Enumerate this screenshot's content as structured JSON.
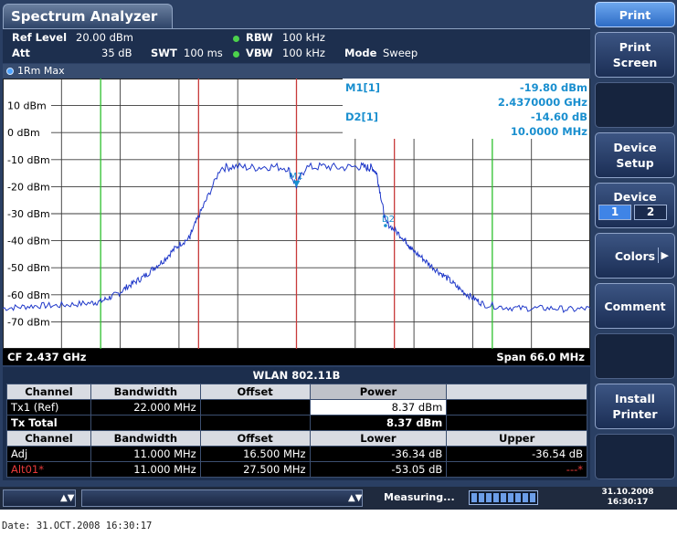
{
  "title": "Spectrum Analyzer",
  "header": {
    "ref_level_label": "Ref Level",
    "ref_level_value": "20.00 dBm",
    "att_label": "Att",
    "att_value": "35 dB",
    "swt_label": "SWT",
    "swt_value": "100 ms",
    "rbw_label": "RBW",
    "rbw_value": "100 kHz",
    "vbw_label": "VBW",
    "vbw_value": "100 kHz",
    "mode_label": "Mode",
    "mode_value": "Sweep",
    "indicator_color": "#4cd24c"
  },
  "trace": {
    "label": "1Rm Max",
    "color": "#1f38c9"
  },
  "markers": {
    "m1_label": "M1[1]",
    "m1_level": "-19.80 dBm",
    "m1_freq": "2.4370000 GHz",
    "d2_label": "D2[1]",
    "d2_level": "-14.60 dB",
    "d2_freq": "10.0000 MHz",
    "m1_tag": "M1",
    "d2_tag": "D2",
    "readout_color": "#1a8fcf"
  },
  "cf": "CF 2.437 GHz",
  "span": "Span 66.0 MHz",
  "chart_data": {
    "type": "line",
    "xlabel": "",
    "ylabel": "",
    "y_unit": "dBm",
    "x_range_mhz": [
      -33,
      33
    ],
    "ylim": [
      -80,
      20
    ],
    "y_ticks": [
      {
        "v": 10,
        "label": "10 dBm"
      },
      {
        "v": 0,
        "label": "0 dBm"
      },
      {
        "v": -10,
        "label": "-10 dBm"
      },
      {
        "v": -20,
        "label": "-20 dBm"
      },
      {
        "v": -30,
        "label": "-30 dBm"
      },
      {
        "v": -40,
        "label": "-40 dBm"
      },
      {
        "v": -50,
        "label": "-50 dBm"
      },
      {
        "v": -60,
        "label": "-60 dBm"
      },
      {
        "v": -70,
        "label": "-70 dBm"
      }
    ],
    "grid": true,
    "series": [
      {
        "x": [
          -33,
          -31,
          -29,
          -27,
          -25,
          -23,
          -22,
          -21,
          -20,
          -19,
          -18,
          -17,
          -16,
          -15,
          -14,
          -13,
          -12,
          -11.8,
          -11,
          -10,
          -8.5,
          -7,
          -5,
          -3,
          -1,
          0,
          1,
          3,
          5,
          7,
          8,
          8.5,
          9,
          9.5,
          10,
          11,
          12,
          12.5,
          13,
          14,
          15,
          16,
          17,
          18,
          19,
          20,
          21,
          23,
          25,
          27,
          29,
          31,
          33
        ],
        "y": [
          -65,
          -64.5,
          -64,
          -64,
          -63.5,
          -63,
          -62.5,
          -61,
          -59.5,
          -57,
          -55,
          -53,
          -50,
          -47.5,
          -44,
          -41,
          -39,
          -37,
          -31,
          -24,
          -13,
          -12.5,
          -13,
          -12.5,
          -13,
          -19.8,
          -13,
          -12.5,
          -13,
          -12.5,
          -13,
          -13,
          -15,
          -24,
          -33,
          -36,
          -39,
          -41,
          -43.5,
          -46,
          -49,
          -51.5,
          -54,
          -57,
          -59.5,
          -61.5,
          -63.5,
          -64.5,
          -65,
          -65,
          -65,
          -65.5,
          -65
        ]
      }
    ],
    "vlines_red_mhz": [
      -11,
      0,
      11
    ],
    "vlines_green_mhz": [
      -22,
      22
    ],
    "marker_m1": {
      "x": 0,
      "y": -19.8
    },
    "marker_d2": {
      "x": 10,
      "y": -34.4
    }
  },
  "table": {
    "title": "WLAN 802.11B",
    "header1": [
      "Channel",
      "Bandwidth",
      "Offset",
      "Power",
      ""
    ],
    "row_tx1": [
      "Tx1 (Ref)",
      "22.000 MHz",
      "",
      "8.37 dBm",
      ""
    ],
    "row_total": [
      "Tx Total",
      "",
      "",
      "8.37 dBm",
      ""
    ],
    "header2": [
      "Channel",
      "Bandwidth",
      "Offset",
      "Lower",
      "Upper"
    ],
    "row_adj": [
      "Adj",
      "11.000 MHz",
      "16.500 MHz",
      "-36.34 dB",
      "-36.54 dB"
    ],
    "row_alt": [
      "Alt01*",
      "11.000 MHz",
      "27.500 MHz",
      "-53.05 dB",
      "---*"
    ]
  },
  "softkeys": {
    "print": "Print",
    "print_screen_1": "Print",
    "print_screen_2": "Screen",
    "device_setup_1": "Device",
    "device_setup_2": "Setup",
    "device": "Device",
    "device_1": "1",
    "device_2": "2",
    "colors": "Colors",
    "comment": "Comment",
    "install_printer_1": "Install",
    "install_printer_2": "Printer"
  },
  "status": {
    "measuring": "Measuring...",
    "date": "31.10.2008",
    "time": "16:30:17"
  },
  "footer_date": "Date: 31.OCT.2008  16:30:17"
}
